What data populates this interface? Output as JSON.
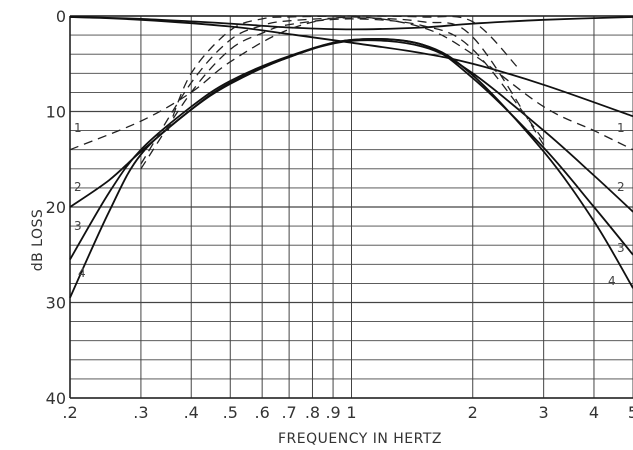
{
  "chart_data": {
    "type": "line",
    "title": "",
    "xlabel": "FREQUENCY IN HERTZ",
    "ylabel": "dB LOSS",
    "xscale": "log",
    "xlim": [
      0.2,
      5
    ],
    "ylim": [
      40,
      0
    ],
    "y_inverted": true,
    "grid": true,
    "x_ticks": [
      {
        "value": 0.2,
        "label": ".2"
      },
      {
        "value": 0.3,
        "label": ".3"
      },
      {
        "value": 0.4,
        "label": ".4"
      },
      {
        "value": 0.5,
        "label": ".5"
      },
      {
        "value": 0.6,
        "label": ".6"
      },
      {
        "value": 0.7,
        "label": ".7"
      },
      {
        "value": 0.8,
        "label": ".8"
      },
      {
        "value": 0.9,
        "label": ".9"
      },
      {
        "value": 1,
        "label": "1"
      },
      {
        "value": 2,
        "label": "2"
      },
      {
        "value": 3,
        "label": "3"
      },
      {
        "value": 4,
        "label": "4"
      },
      {
        "value": 5,
        "label": "5"
      }
    ],
    "y_ticks": [
      {
        "value": 0,
        "label": "0"
      },
      {
        "value": 10,
        "label": "10"
      },
      {
        "value": 20,
        "label": "20"
      },
      {
        "value": 30,
        "label": "30"
      },
      {
        "value": 40,
        "label": "40"
      }
    ],
    "solid_series": [
      {
        "label": "1",
        "x": [
          0.2,
          0.3,
          0.5,
          0.7,
          1.0,
          1.5,
          2.0,
          3.0,
          5.0
        ],
        "y": [
          0.1,
          0.3,
          0.8,
          1.2,
          1.4,
          1.2,
          0.8,
          0.4,
          0.1
        ]
      },
      {
        "label": "1",
        "x": [
          0.2,
          0.3,
          0.5,
          0.7,
          1.0,
          1.5,
          2.0,
          3.0,
          5.0
        ],
        "y": [
          0.1,
          0.4,
          1.1,
          1.9,
          2.8,
          3.9,
          5.0,
          7.2,
          10.5
        ]
      },
      {
        "label": "2",
        "x": [
          0.2,
          0.25,
          0.3,
          0.4,
          0.5,
          0.7,
          1.0,
          1.5,
          2.0,
          3.0,
          4.0,
          5.0
        ],
        "y": [
          20.0,
          17.2,
          14.2,
          9.8,
          7.1,
          4.3,
          2.6,
          3.2,
          6.0,
          12.0,
          16.7,
          20.5
        ]
      },
      {
        "label": "3",
        "x": [
          0.2,
          0.25,
          0.3,
          0.4,
          0.5,
          0.7,
          1.0,
          1.5,
          2.0,
          3.0,
          4.0,
          5.0
        ],
        "y": [
          25.5,
          18.5,
          14.0,
          9.5,
          6.8,
          4.2,
          2.5,
          3.0,
          6.5,
          13.8,
          20.0,
          25.0
        ]
      },
      {
        "label": "4",
        "x": [
          0.2,
          0.25,
          0.3,
          0.4,
          0.5,
          0.7,
          1.0,
          1.5,
          2.0,
          3.0,
          4.0,
          5.0
        ],
        "y": [
          29.5,
          20.5,
          14.5,
          9.8,
          7.0,
          4.3,
          2.5,
          3.0,
          6.2,
          14.2,
          21.5,
          28.5
        ]
      }
    ],
    "dashed_series": [
      {
        "label": "1",
        "x": [
          0.2,
          0.3,
          0.4,
          0.5,
          0.7,
          1.0,
          1.5,
          2.0,
          3.0,
          4.0,
          5.0
        ],
        "y": [
          14.0,
          11.0,
          8.0,
          4.8,
          1.4,
          0.1,
          1.2,
          4.0,
          9.5,
          12.0,
          14.0
        ]
      },
      {
        "label": "2",
        "x": [
          0.3,
          0.4,
          0.5,
          0.6,
          0.7,
          1.0,
          1.5,
          2.0,
          3.0
        ],
        "y": [
          16.0,
          8.0,
          3.5,
          1.8,
          0.9,
          0.3,
          1.0,
          3.5,
          13.0
        ]
      },
      {
        "label": "3",
        "x": [
          0.3,
          0.4,
          0.5,
          0.6,
          0.7,
          1.0,
          1.5,
          2.0,
          3.0
        ],
        "y": [
          15.5,
          7.0,
          2.5,
          1.0,
          0.5,
          0.2,
          0.6,
          2.2,
          13.5
        ]
      },
      {
        "label": "4",
        "x": [
          0.35,
          0.4,
          0.5,
          0.6,
          0.7,
          1.0,
          1.5,
          2.0,
          2.6
        ],
        "y": [
          12.0,
          6.0,
          1.5,
          0.3,
          0.1,
          0.0,
          0.1,
          0.6,
          5.5
        ]
      }
    ],
    "curve_labels_left": [
      "1",
      "2",
      "3",
      "4"
    ],
    "curve_labels_right": [
      "1",
      "2",
      "3",
      "4"
    ]
  }
}
